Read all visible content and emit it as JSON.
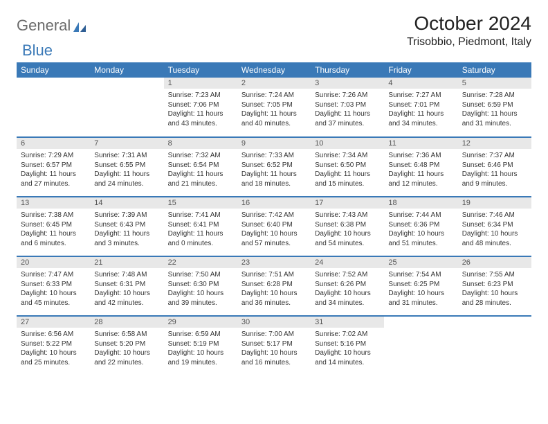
{
  "logo": {
    "text_general": "General",
    "text_blue": "Blue"
  },
  "header": {
    "month_title": "October 2024",
    "location": "Trisobbio, Piedmont, Italy"
  },
  "colors": {
    "header_bg": "#3a79b7",
    "header_text": "#ffffff",
    "daynum_bg": "#e8e8e8",
    "daynum_text": "#555555",
    "body_text": "#333333",
    "rule": "#3a79b7",
    "logo_gray": "#6a6a6a",
    "logo_blue": "#3a79b7"
  },
  "day_headers": [
    "Sunday",
    "Monday",
    "Tuesday",
    "Wednesday",
    "Thursday",
    "Friday",
    "Saturday"
  ],
  "weeks": [
    [
      null,
      null,
      {
        "n": "1",
        "sr": "Sunrise: 7:23 AM",
        "ss": "Sunset: 7:06 PM",
        "dl": "Daylight: 11 hours and 43 minutes."
      },
      {
        "n": "2",
        "sr": "Sunrise: 7:24 AM",
        "ss": "Sunset: 7:05 PM",
        "dl": "Daylight: 11 hours and 40 minutes."
      },
      {
        "n": "3",
        "sr": "Sunrise: 7:26 AM",
        "ss": "Sunset: 7:03 PM",
        "dl": "Daylight: 11 hours and 37 minutes."
      },
      {
        "n": "4",
        "sr": "Sunrise: 7:27 AM",
        "ss": "Sunset: 7:01 PM",
        "dl": "Daylight: 11 hours and 34 minutes."
      },
      {
        "n": "5",
        "sr": "Sunrise: 7:28 AM",
        "ss": "Sunset: 6:59 PM",
        "dl": "Daylight: 11 hours and 31 minutes."
      }
    ],
    [
      {
        "n": "6",
        "sr": "Sunrise: 7:29 AM",
        "ss": "Sunset: 6:57 PM",
        "dl": "Daylight: 11 hours and 27 minutes."
      },
      {
        "n": "7",
        "sr": "Sunrise: 7:31 AM",
        "ss": "Sunset: 6:55 PM",
        "dl": "Daylight: 11 hours and 24 minutes."
      },
      {
        "n": "8",
        "sr": "Sunrise: 7:32 AM",
        "ss": "Sunset: 6:54 PM",
        "dl": "Daylight: 11 hours and 21 minutes."
      },
      {
        "n": "9",
        "sr": "Sunrise: 7:33 AM",
        "ss": "Sunset: 6:52 PM",
        "dl": "Daylight: 11 hours and 18 minutes."
      },
      {
        "n": "10",
        "sr": "Sunrise: 7:34 AM",
        "ss": "Sunset: 6:50 PM",
        "dl": "Daylight: 11 hours and 15 minutes."
      },
      {
        "n": "11",
        "sr": "Sunrise: 7:36 AM",
        "ss": "Sunset: 6:48 PM",
        "dl": "Daylight: 11 hours and 12 minutes."
      },
      {
        "n": "12",
        "sr": "Sunrise: 7:37 AM",
        "ss": "Sunset: 6:46 PM",
        "dl": "Daylight: 11 hours and 9 minutes."
      }
    ],
    [
      {
        "n": "13",
        "sr": "Sunrise: 7:38 AM",
        "ss": "Sunset: 6:45 PM",
        "dl": "Daylight: 11 hours and 6 minutes."
      },
      {
        "n": "14",
        "sr": "Sunrise: 7:39 AM",
        "ss": "Sunset: 6:43 PM",
        "dl": "Daylight: 11 hours and 3 minutes."
      },
      {
        "n": "15",
        "sr": "Sunrise: 7:41 AM",
        "ss": "Sunset: 6:41 PM",
        "dl": "Daylight: 11 hours and 0 minutes."
      },
      {
        "n": "16",
        "sr": "Sunrise: 7:42 AM",
        "ss": "Sunset: 6:40 PM",
        "dl": "Daylight: 10 hours and 57 minutes."
      },
      {
        "n": "17",
        "sr": "Sunrise: 7:43 AM",
        "ss": "Sunset: 6:38 PM",
        "dl": "Daylight: 10 hours and 54 minutes."
      },
      {
        "n": "18",
        "sr": "Sunrise: 7:44 AM",
        "ss": "Sunset: 6:36 PM",
        "dl": "Daylight: 10 hours and 51 minutes."
      },
      {
        "n": "19",
        "sr": "Sunrise: 7:46 AM",
        "ss": "Sunset: 6:34 PM",
        "dl": "Daylight: 10 hours and 48 minutes."
      }
    ],
    [
      {
        "n": "20",
        "sr": "Sunrise: 7:47 AM",
        "ss": "Sunset: 6:33 PM",
        "dl": "Daylight: 10 hours and 45 minutes."
      },
      {
        "n": "21",
        "sr": "Sunrise: 7:48 AM",
        "ss": "Sunset: 6:31 PM",
        "dl": "Daylight: 10 hours and 42 minutes."
      },
      {
        "n": "22",
        "sr": "Sunrise: 7:50 AM",
        "ss": "Sunset: 6:30 PM",
        "dl": "Daylight: 10 hours and 39 minutes."
      },
      {
        "n": "23",
        "sr": "Sunrise: 7:51 AM",
        "ss": "Sunset: 6:28 PM",
        "dl": "Daylight: 10 hours and 36 minutes."
      },
      {
        "n": "24",
        "sr": "Sunrise: 7:52 AM",
        "ss": "Sunset: 6:26 PM",
        "dl": "Daylight: 10 hours and 34 minutes."
      },
      {
        "n": "25",
        "sr": "Sunrise: 7:54 AM",
        "ss": "Sunset: 6:25 PM",
        "dl": "Daylight: 10 hours and 31 minutes."
      },
      {
        "n": "26",
        "sr": "Sunrise: 7:55 AM",
        "ss": "Sunset: 6:23 PM",
        "dl": "Daylight: 10 hours and 28 minutes."
      }
    ],
    [
      {
        "n": "27",
        "sr": "Sunrise: 6:56 AM",
        "ss": "Sunset: 5:22 PM",
        "dl": "Daylight: 10 hours and 25 minutes."
      },
      {
        "n": "28",
        "sr": "Sunrise: 6:58 AM",
        "ss": "Sunset: 5:20 PM",
        "dl": "Daylight: 10 hours and 22 minutes."
      },
      {
        "n": "29",
        "sr": "Sunrise: 6:59 AM",
        "ss": "Sunset: 5:19 PM",
        "dl": "Daylight: 10 hours and 19 minutes."
      },
      {
        "n": "30",
        "sr": "Sunrise: 7:00 AM",
        "ss": "Sunset: 5:17 PM",
        "dl": "Daylight: 10 hours and 16 minutes."
      },
      {
        "n": "31",
        "sr": "Sunrise: 7:02 AM",
        "ss": "Sunset: 5:16 PM",
        "dl": "Daylight: 10 hours and 14 minutes."
      },
      null,
      null
    ]
  ]
}
